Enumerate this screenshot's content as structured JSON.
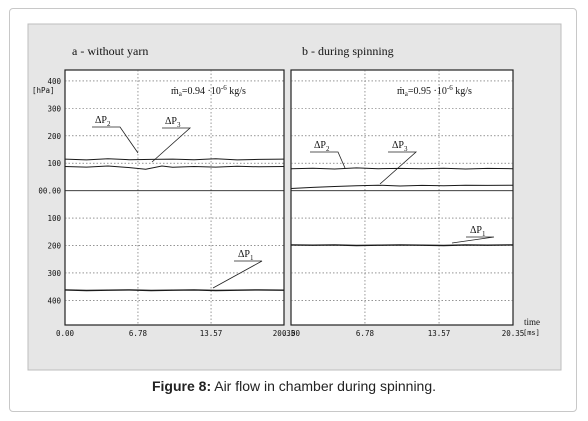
{
  "caption": {
    "label": "Figure 8:",
    "text": "Air flow in chamber during spinning."
  },
  "chart_data": [
    {
      "type": "line",
      "panel_title": "a -   without yarn",
      "mass_flow_label": "ṁ",
      "mass_flow_sub": "a",
      "mass_flow_value": "=0.94 ·10",
      "mass_flow_exp": "-6",
      "mass_flow_unit": " kg/s",
      "y_unit": "[hPa]",
      "y_ticks": [
        "400",
        "300",
        "200",
        "100",
        "00.00",
        "100",
        "200",
        "300",
        "400"
      ],
      "y_tick_values": [
        400,
        300,
        200,
        100,
        0,
        -100,
        -200,
        -300,
        -400
      ],
      "ylim": [
        -490,
        440
      ],
      "x_ticks": [
        "0.00",
        "6.78",
        "13.57",
        "20.35"
      ],
      "x_tick_values": [
        0,
        6.78,
        13.57,
        20.35
      ],
      "xlim": [
        0,
        20.35
      ],
      "grid": true,
      "series": [
        {
          "name": "ΔP2",
          "sub": "2",
          "x": [
            0,
            2,
            4,
            6,
            8,
            10,
            12,
            14,
            16,
            18,
            20.35
          ],
          "y": [
            115,
            112,
            116,
            113,
            114,
            115,
            113,
            116,
            112,
            114,
            115
          ]
        },
        {
          "name": "ΔP3",
          "sub": "3",
          "x": [
            0,
            2,
            4,
            6,
            7.5,
            9,
            10,
            12,
            14,
            16,
            18,
            20.35
          ],
          "y": [
            88,
            86,
            90,
            84,
            78,
            90,
            85,
            88,
            86,
            89,
            87,
            88
          ]
        },
        {
          "name": "ΔP1",
          "sub": "1",
          "x": [
            0,
            2,
            4,
            6,
            8,
            10,
            12,
            14,
            16,
            18,
            20.35
          ],
          "y": [
            -362,
            -364,
            -363,
            -362,
            -364,
            -363,
            -362,
            -364,
            -363,
            -362,
            -363
          ]
        }
      ]
    },
    {
      "type": "line",
      "panel_title": "b - during spinning",
      "mass_flow_label": "ṁ",
      "mass_flow_sub": "a",
      "mass_flow_value": "=0.95 ·10",
      "mass_flow_exp": "-6",
      "mass_flow_unit": " kg/s",
      "x_ticks": [
        "0.00",
        "6.78",
        "13.57",
        "20.35"
      ],
      "x_tick_values": [
        0,
        6.78,
        13.57,
        20.35
      ],
      "xlim": [
        0,
        20.35
      ],
      "x_label": "time",
      "x_unit": "[ms]",
      "grid": true,
      "series": [
        {
          "name": "ΔP2",
          "sub": "2",
          "x": [
            0,
            2,
            4,
            6,
            8,
            10,
            12,
            14,
            16,
            18,
            20.35
          ],
          "y": [
            80,
            82,
            79,
            83,
            80,
            81,
            80,
            82,
            79,
            81,
            80
          ]
        },
        {
          "name": "ΔP3",
          "sub": "3",
          "x": [
            0,
            2,
            4,
            6,
            8,
            10,
            12,
            14,
            16,
            18,
            20.35
          ],
          "y": [
            8,
            12,
            15,
            18,
            20,
            17,
            19,
            18,
            20,
            19,
            20
          ]
        },
        {
          "name": "ΔP1",
          "sub": "1",
          "x": [
            0,
            2,
            4,
            6,
            8,
            10,
            12,
            14,
            16,
            18,
            20.35
          ],
          "y": [
            -198,
            -199,
            -198,
            -200,
            -199,
            -198,
            -199,
            -200,
            -198,
            -199,
            -198
          ]
        }
      ]
    }
  ]
}
